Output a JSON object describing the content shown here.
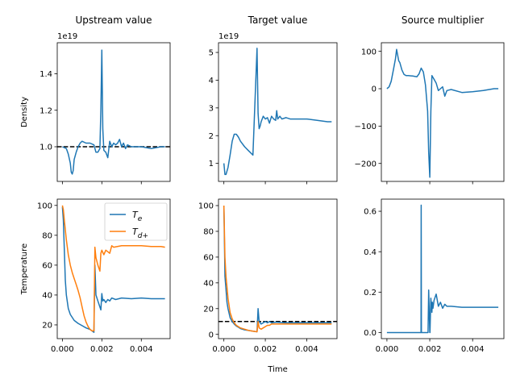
{
  "figure": {
    "colors": {
      "blue": "#1f77b4",
      "orange": "#ff7f0e",
      "reference": "#000000"
    },
    "shared_xlabel": "Time"
  },
  "chart_data": [
    {
      "id": "upstream_density",
      "type": "line",
      "title": "Upstream value",
      "ylabel": "Density",
      "offset_text": "1e19",
      "xlim": [
        -0.00026,
        0.00546
      ],
      "ylim": [
        0.81,
        1.57
      ],
      "xticks": [
        0.0,
        0.002,
        0.004
      ],
      "xtick_labels": [],
      "yticks": [
        1.0,
        1.2,
        1.4
      ],
      "ytick_labels": [
        "1.0",
        "1.2",
        "1.4"
      ],
      "hline": {
        "y": 1.0,
        "style": "dashed"
      },
      "series": [
        {
          "color": "#1f77b4",
          "x": [
            0.0,
            0.0002,
            0.0003,
            0.0004,
            0.00045,
            0.0005,
            0.00055,
            0.0006,
            0.0007,
            0.0008,
            0.0009,
            0.001,
            0.0012,
            0.0014,
            0.0016,
            0.0017,
            0.0018,
            0.0019,
            0.00195,
            0.002,
            0.00205,
            0.0021,
            0.0022,
            0.0023,
            0.0024,
            0.0025,
            0.0026,
            0.0027,
            0.0028,
            0.0029,
            0.003,
            0.0031,
            0.0032,
            0.0033,
            0.0035,
            0.0038,
            0.004,
            0.0045,
            0.005,
            0.0052
          ],
          "values": [
            1.0,
            0.99,
            0.96,
            0.91,
            0.86,
            0.85,
            0.87,
            0.93,
            0.97,
            1.0,
            1.02,
            1.03,
            1.02,
            1.02,
            1.01,
            0.97,
            0.97,
            0.99,
            1.2,
            1.53,
            1.1,
            0.98,
            0.97,
            0.94,
            1.03,
            1.0,
            1.02,
            1.01,
            1.02,
            1.04,
            1.0,
            1.02,
            0.99,
            1.01,
            1.0,
            1.0,
            1.0,
            0.99,
            1.0,
            1.0
          ]
        }
      ]
    },
    {
      "id": "target_density",
      "type": "line",
      "title": "Target value",
      "ylabel": "",
      "offset_text": "1e19",
      "xlim": [
        -0.00026,
        0.00546
      ],
      "ylim": [
        0.35,
        5.35
      ],
      "xticks": [
        0.0,
        0.002,
        0.004
      ],
      "xtick_labels": [],
      "yticks": [
        1,
        2,
        3,
        4,
        5
      ],
      "ytick_labels": [
        "1",
        "2",
        "3",
        "4",
        "5"
      ],
      "series": [
        {
          "color": "#1f77b4",
          "x": [
            0.0,
            5e-05,
            0.0001,
            0.0002,
            0.0003,
            0.0004,
            0.0005,
            0.0006,
            0.0007,
            0.0008,
            0.001,
            0.0012,
            0.0014,
            0.0016,
            0.00165,
            0.0017,
            0.00175,
            0.0018,
            0.0019,
            0.002,
            0.0021,
            0.0022,
            0.0023,
            0.0024,
            0.0025,
            0.00255,
            0.0026,
            0.0027,
            0.0028,
            0.003,
            0.0032,
            0.0035,
            0.004,
            0.0045,
            0.005,
            0.0052
          ],
          "values": [
            1.0,
            0.6,
            0.6,
            0.85,
            1.3,
            1.8,
            2.05,
            2.05,
            1.95,
            1.8,
            1.6,
            1.45,
            1.3,
            5.15,
            2.8,
            2.25,
            2.35,
            2.5,
            2.7,
            2.6,
            2.65,
            2.45,
            2.7,
            2.6,
            2.55,
            2.9,
            2.6,
            2.7,
            2.6,
            2.65,
            2.6,
            2.6,
            2.6,
            2.55,
            2.5,
            2.5
          ]
        }
      ]
    },
    {
      "id": "source_multiplier_density",
      "type": "line",
      "title": "Source multiplier",
      "ylabel": "",
      "xlim": [
        -0.00026,
        0.00546
      ],
      "ylim": [
        -248,
        123
      ],
      "xticks": [
        0.0,
        0.002,
        0.004
      ],
      "xtick_labels": [],
      "yticks": [
        -200,
        -100,
        0,
        100
      ],
      "ytick_labels": [
        "−200",
        "−100",
        "0",
        "100"
      ],
      "series": [
        {
          "color": "#1f77b4",
          "x": [
            0.0,
            0.0001,
            0.0002,
            0.0003,
            0.0004,
            0.00045,
            0.0005,
            0.00055,
            0.0006,
            0.0007,
            0.0008,
            0.0009,
            0.001,
            0.0012,
            0.0014,
            0.0015,
            0.0016,
            0.0017,
            0.0018,
            0.0019,
            0.00195,
            0.002,
            0.00205,
            0.0021,
            0.0022,
            0.0023,
            0.0024,
            0.0025,
            0.0026,
            0.0027,
            0.0028,
            0.003,
            0.0035,
            0.004,
            0.0045,
            0.005,
            0.0052
          ],
          "values": [
            0,
            5,
            20,
            50,
            80,
            105,
            90,
            75,
            70,
            50,
            38,
            35,
            35,
            34,
            32,
            40,
            55,
            45,
            10,
            -60,
            -170,
            -237,
            -60,
            35,
            25,
            15,
            -5,
            0,
            5,
            -20,
            -5,
            -2,
            -10,
            -8,
            -5,
            0,
            0
          ]
        }
      ]
    },
    {
      "id": "upstream_temperature",
      "type": "line",
      "title": "",
      "ylabel": "Temperature",
      "xlim": [
        -0.00026,
        0.00546
      ],
      "ylim": [
        10.8,
        104.2
      ],
      "xticks": [
        0.0,
        0.002,
        0.004
      ],
      "xtick_labels": [
        "0.000",
        "0.002",
        "0.004"
      ],
      "yticks": [
        20,
        40,
        60,
        80,
        100
      ],
      "ytick_labels": [
        "20",
        "40",
        "60",
        "80",
        "100"
      ],
      "legend": {
        "placement": "upper right",
        "entries": [
          "$T_e$",
          "$T_{d+}$"
        ]
      },
      "series": [
        {
          "name": "Te",
          "color": "#1f77b4",
          "x": [
            0.0,
            5e-05,
            0.0001,
            0.00015,
            0.0002,
            0.0003,
            0.0004,
            0.0006,
            0.0008,
            0.001,
            0.0012,
            0.0014,
            0.0016,
            0.00165,
            0.0017,
            0.0018,
            0.0019,
            0.00195,
            0.002,
            0.00205,
            0.0021,
            0.0022,
            0.0023,
            0.0024,
            0.0025,
            0.0027,
            0.003,
            0.0035,
            0.004,
            0.0045,
            0.005,
            0.0052
          ],
          "values": [
            99,
            90,
            70,
            50,
            40,
            31,
            27,
            23,
            21,
            19.5,
            18,
            17,
            15,
            60,
            40,
            36,
            32,
            30,
            41,
            36,
            37,
            35,
            37,
            36,
            38,
            37,
            38,
            37.5,
            38,
            37.5,
            37.5,
            37.5
          ]
        },
        {
          "name": "Td+",
          "color": "#ff7f0e",
          "x": [
            0.0,
            5e-05,
            0.0001,
            0.0002,
            0.0003,
            0.0004,
            0.0005,
            0.0006,
            0.0007,
            0.0008,
            0.0009,
            0.001,
            0.0011,
            0.0012,
            0.0013,
            0.0014,
            0.0015,
            0.0016,
            0.00165,
            0.0017,
            0.0018,
            0.0019,
            0.00195,
            0.002,
            0.0021,
            0.0022,
            0.0023,
            0.0024,
            0.0025,
            0.0026,
            0.003,
            0.0035,
            0.004,
            0.0045,
            0.005,
            0.0052
          ],
          "values": [
            100,
            97,
            90,
            77,
            67,
            60,
            55,
            51,
            47,
            43,
            38,
            32,
            26,
            22,
            19,
            17,
            16,
            16,
            72,
            65,
            60,
            56,
            68,
            70,
            67,
            70,
            69,
            68,
            73,
            72,
            73,
            73,
            73,
            72.5,
            72.5,
            72
          ]
        }
      ]
    },
    {
      "id": "target_temperature",
      "type": "line",
      "title": "",
      "ylabel": "",
      "xlabel": "Time",
      "xlim": [
        -0.00026,
        0.00546
      ],
      "ylim": [
        -3.3,
        105
      ],
      "xticks": [
        0.0,
        0.002,
        0.004
      ],
      "xtick_labels": [
        "0.000",
        "0.002",
        "0.004"
      ],
      "yticks": [
        0,
        20,
        40,
        60,
        80,
        100
      ],
      "ytick_labels": [
        "0",
        "20",
        "40",
        "60",
        "80",
        "100"
      ],
      "hline": {
        "y": 10,
        "style": "dashed"
      },
      "series": [
        {
          "name": "Te",
          "color": "#1f77b4",
          "x": [
            0.0,
            5e-05,
            0.0001,
            0.00015,
            0.0002,
            0.0003,
            0.0004,
            0.0005,
            0.0006,
            0.0007,
            0.0008,
            0.001,
            0.0012,
            0.0014,
            0.0016,
            0.00165,
            0.0017,
            0.0018,
            0.0019,
            0.002,
            0.0021,
            0.0022,
            0.0023,
            0.0025,
            0.003,
            0.004,
            0.005,
            0.0052
          ],
          "values": [
            100,
            45,
            35,
            25,
            20,
            13,
            10,
            8,
            6.5,
            5.5,
            4.5,
            3.5,
            3,
            2.5,
            2,
            20,
            10,
            8,
            9,
            10,
            9,
            10,
            9,
            9.5,
            9,
            9,
            9,
            9
          ]
        },
        {
          "name": "Td+",
          "color": "#ff7f0e",
          "x": [
            0.0,
            5e-05,
            0.0001,
            0.0002,
            0.0003,
            0.0004,
            0.0005,
            0.0006,
            0.0008,
            0.001,
            0.0012,
            0.0014,
            0.0016,
            0.00165,
            0.0017,
            0.0018,
            0.0019,
            0.002,
            0.0021,
            0.0022,
            0.0023,
            0.0025,
            0.003,
            0.004,
            0.005,
            0.0052
          ],
          "values": [
            100,
            60,
            45,
            28,
            17,
            12,
            9,
            7,
            5,
            4,
            3,
            2.5,
            2,
            10,
            5,
            4,
            5,
            6,
            7,
            7,
            8,
            8,
            8,
            8,
            8,
            8
          ]
        }
      ]
    },
    {
      "id": "source_multiplier_temperature",
      "type": "line",
      "title": "",
      "ylabel": "",
      "xlim": [
        -0.00026,
        0.00546
      ],
      "ylim": [
        -0.03,
        0.66
      ],
      "xticks": [
        0.0,
        0.002,
        0.004
      ],
      "xtick_labels": [
        "0.000",
        "0.002",
        "0.004"
      ],
      "yticks": [
        0.0,
        0.2,
        0.4,
        0.6
      ],
      "ytick_labels": [
        "0.0",
        "0.2",
        "0.4",
        "0.6"
      ],
      "series": [
        {
          "color": "#1f77b4",
          "x": [
            0.0,
            0.0005,
            0.001,
            0.0015,
            0.00159,
            0.0016,
            0.00161,
            0.00162,
            0.0017,
            0.0018,
            0.0019,
            0.00192,
            0.00195,
            0.002,
            0.00201,
            0.00205,
            0.0021,
            0.00212,
            0.00215,
            0.0022,
            0.0023,
            0.0024,
            0.0025,
            0.0026,
            0.0027,
            0.0028,
            0.003,
            0.0035,
            0.004,
            0.0045,
            0.005,
            0.0052
          ],
          "values": [
            0.0,
            0.0,
            0.0,
            0.0,
            0.0,
            0.63,
            0.0,
            0.0,
            0.0,
            0.0,
            0.0,
            0.0,
            0.21,
            0.0,
            0.0,
            0.17,
            0.1,
            0.15,
            0.12,
            0.16,
            0.19,
            0.13,
            0.15,
            0.12,
            0.14,
            0.13,
            0.13,
            0.125,
            0.125,
            0.125,
            0.125,
            0.125
          ]
        }
      ]
    }
  ]
}
